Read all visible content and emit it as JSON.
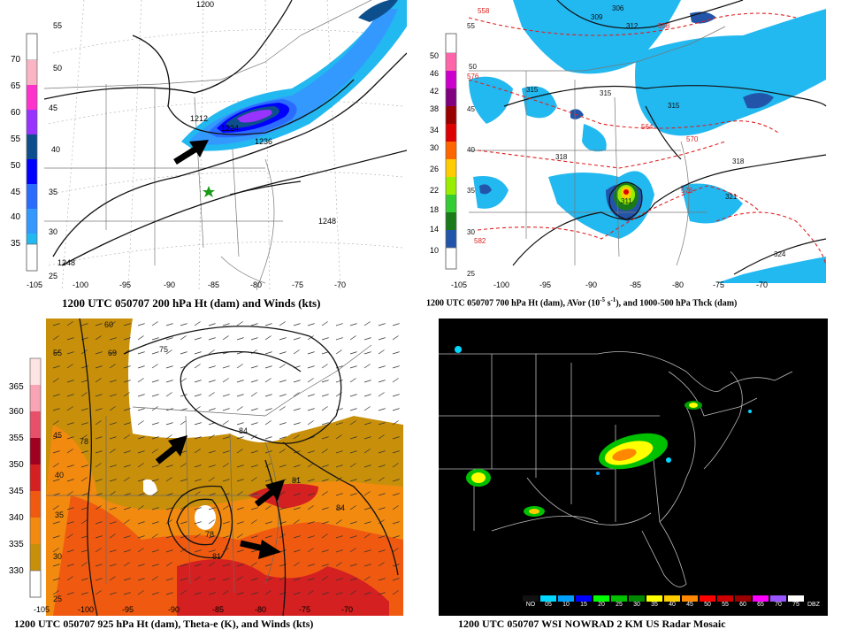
{
  "panels": [
    {
      "caption": "1200 UTC 050707 200 hPa Ht (dam) and Winds (kts)",
      "colorbar": [
        "70",
        "65",
        "60",
        "55",
        "50",
        "45",
        "40",
        "35"
      ],
      "colorbar_colors": [
        "#fbb4c4",
        "#ff33cc",
        "#9933ff",
        "#0d4f8c",
        "#0000ff",
        "#2b6cff",
        "#3399ff",
        "#22b8f0"
      ],
      "contour_labels": [
        "55",
        "50",
        "45",
        "40",
        "35",
        "30",
        "25",
        "1200",
        "1212",
        "1224",
        "1236",
        "1248",
        "1248"
      ],
      "lon_labels": [
        "-105",
        "-100",
        "-95",
        "-90",
        "-85",
        "-80",
        "-75",
        "-70"
      ]
    },
    {
      "caption": "1200 UTC 050707 700 hPa Ht (dam), AVor (10",
      "caption_sup1": "-5",
      "caption_mid": " s",
      "caption_sup2": "-1",
      "caption_end": "), and 1000-500 hPa Thck (dam)",
      "colorbar": [
        "50",
        "46",
        "42",
        "38",
        "34",
        "30",
        "26",
        "22",
        "18",
        "14",
        "10"
      ],
      "colorbar_colors": [
        "#ff66aa",
        "#cc00cc",
        "#800080",
        "#990000",
        "#dd0000",
        "#ff6600",
        "#ffcc00",
        "#99ee00",
        "#33cc33",
        "#1a7a1a",
        "#2255aa",
        "#22b8f0"
      ],
      "contour_labels": [
        "306",
        "309",
        "312",
        "315",
        "315",
        "315",
        "318",
        "318",
        "321",
        "324",
        "311"
      ],
      "thickness_labels": [
        "558",
        "558",
        "564",
        "570",
        "576",
        "576",
        "582",
        "55",
        "50",
        "45",
        "40",
        "35",
        "30",
        "25"
      ],
      "lon_labels": [
        "-105",
        "-100",
        "-95",
        "-90",
        "-85",
        "-80",
        "-75",
        "-70"
      ]
    },
    {
      "caption": "1200 UTC 050707 925 hPa Ht (dam), Theta-e (K), and Winds (kts)",
      "colorbar": [
        "365",
        "360",
        "355",
        "350",
        "345",
        "340",
        "335",
        "330"
      ],
      "colorbar_colors": [
        "#fde3e3",
        "#f8a4b4",
        "#e8506a",
        "#a00020",
        "#d42020",
        "#f05a10",
        "#f28a10",
        "#c8900a"
      ],
      "contour_labels": [
        "60",
        "69",
        "75",
        "78",
        "84",
        "81",
        "84",
        "78",
        "81",
        "55",
        "45",
        "40",
        "35",
        "30",
        "25"
      ],
      "lon_labels": [
        "-105",
        "-100",
        "-95",
        "-90",
        "-85",
        "-80",
        "-75",
        "-70"
      ]
    },
    {
      "caption": "1200 UTC 050707 WSI NOWRAD 2 KM US Radar Mosaic",
      "legend": [
        "NO",
        "05",
        "10",
        "15",
        "20",
        "25",
        "30",
        "35",
        "40",
        "45",
        "50",
        "55",
        "60",
        "65",
        "70",
        "75",
        "DBZ"
      ],
      "legend_colors": [
        "#111111",
        "#00d8ff",
        "#00a0ff",
        "#0000ff",
        "#00ff00",
        "#00c000",
        "#008800",
        "#ffff00",
        "#ffcc00",
        "#ff8800",
        "#ff0000",
        "#cc0000",
        "#990000",
        "#ff00ff",
        "#9955ff",
        "#ffffff"
      ]
    }
  ]
}
